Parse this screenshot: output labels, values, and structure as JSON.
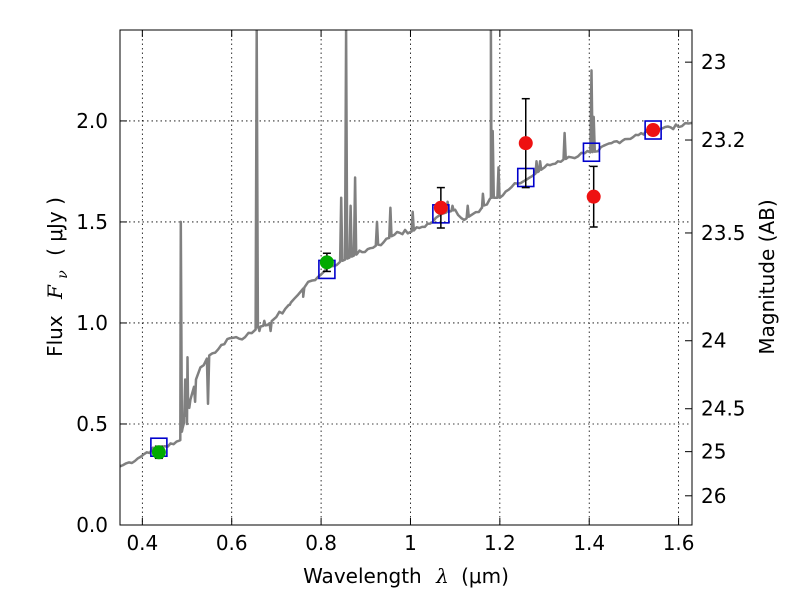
{
  "chart_data": {
    "type": "scatter",
    "title": "",
    "xlabel": "Wavelength",
    "xlabel_symbol": "λ",
    "xlabel_unit": "(μm)",
    "ylabel": "Flux",
    "ylabel_symbol": "F",
    "ylabel_subscript": "ν",
    "ylabel_unit": "( μJy )",
    "ylabel_right": "Magnitude (AB)",
    "xlim": [
      0.35,
      1.63
    ],
    "ylim": [
      0.0,
      2.45
    ],
    "grid": true,
    "x_ticks": [
      {
        "value": 0.4,
        "label": "0.4"
      },
      {
        "value": 0.6,
        "label": "0.6"
      },
      {
        "value": 0.8,
        "label": "0.8"
      },
      {
        "value": 1.0,
        "label": "1"
      },
      {
        "value": 1.2,
        "label": "1.2"
      },
      {
        "value": 1.4,
        "label": "1.4"
      },
      {
        "value": 1.6,
        "label": "1.6"
      }
    ],
    "y_ticks": [
      {
        "value": 0.0,
        "label": "0.0"
      },
      {
        "value": 0.5,
        "label": "0.5"
      },
      {
        "value": 1.0,
        "label": "1.0"
      },
      {
        "value": 1.5,
        "label": "1.5"
      },
      {
        "value": 2.0,
        "label": "2.0"
      }
    ],
    "right_ticks": [
      {
        "value": 23.0,
        "label": "23"
      },
      {
        "value": 23.2,
        "label": "23.2"
      },
      {
        "value": 23.5,
        "label": "23.5"
      },
      {
        "value": 24.0,
        "label": "24"
      },
      {
        "value": 24.5,
        "label": "24.5"
      },
      {
        "value": 25.0,
        "label": "25"
      },
      {
        "value": 26.0,
        "label": "26"
      }
    ],
    "colors": {
      "spectrum": "#808080",
      "model_box": "#0000cc",
      "green_points": "#00aa00",
      "red_points": "#ee1111",
      "errorbar": "#000000"
    },
    "spectrum_continuum": [
      [
        0.35,
        0.29
      ],
      [
        0.37,
        0.31
      ],
      [
        0.39,
        0.33
      ],
      [
        0.41,
        0.36
      ],
      [
        0.43,
        0.38
      ],
      [
        0.45,
        0.39
      ],
      [
        0.47,
        0.4
      ],
      [
        0.485,
        0.42
      ],
      [
        0.49,
        0.48
      ],
      [
        0.5,
        0.56
      ],
      [
        0.52,
        0.72
      ],
      [
        0.53,
        0.78
      ],
      [
        0.55,
        0.84
      ],
      [
        0.57,
        0.87
      ],
      [
        0.59,
        0.92
      ],
      [
        0.61,
        0.93
      ],
      [
        0.63,
        0.93
      ],
      [
        0.645,
        0.95
      ],
      [
        0.66,
        0.98
      ],
      [
        0.68,
        0.99
      ],
      [
        0.7,
        1.03
      ],
      [
        0.72,
        1.07
      ],
      [
        0.74,
        1.12
      ],
      [
        0.76,
        1.17
      ],
      [
        0.78,
        1.21
      ],
      [
        0.8,
        1.24
      ],
      [
        0.82,
        1.28
      ],
      [
        0.85,
        1.31
      ],
      [
        0.88,
        1.34
      ],
      [
        0.91,
        1.37
      ],
      [
        0.94,
        1.4
      ],
      [
        0.97,
        1.45
      ],
      [
        1.0,
        1.45
      ],
      [
        1.02,
        1.47
      ],
      [
        1.05,
        1.5
      ],
      [
        1.07,
        1.54
      ],
      [
        1.1,
        1.56
      ],
      [
        1.12,
        1.51
      ],
      [
        1.14,
        1.54
      ],
      [
        1.16,
        1.57
      ],
      [
        1.18,
        1.62
      ],
      [
        1.2,
        1.62
      ],
      [
        1.22,
        1.66
      ],
      [
        1.24,
        1.69
      ],
      [
        1.26,
        1.71
      ],
      [
        1.28,
        1.74
      ],
      [
        1.3,
        1.77
      ],
      [
        1.33,
        1.8
      ],
      [
        1.36,
        1.82
      ],
      [
        1.39,
        1.84
      ],
      [
        1.42,
        1.85
      ],
      [
        1.45,
        1.89
      ],
      [
        1.48,
        1.91
      ],
      [
        1.51,
        1.93
      ],
      [
        1.54,
        1.95
      ],
      [
        1.57,
        1.97
      ],
      [
        1.6,
        1.97
      ],
      [
        1.63,
        1.99
      ]
    ],
    "spectrum_features": [
      {
        "x": 0.486,
        "y": 1.5,
        "base": 0.42
      },
      {
        "x": 0.496,
        "y": 0.72,
        "base": 0.5
      },
      {
        "x": 0.501,
        "y": 0.83,
        "base": 0.56
      },
      {
        "x": 0.656,
        "y": 2.45,
        "base": 0.98
      },
      {
        "x": 0.673,
        "y": 1.01,
        "base": 0.99
      },
      {
        "x": 0.73,
        "y": 1.09,
        "base": 1.08
      },
      {
        "x": 0.845,
        "y": 1.62,
        "base": 1.3
      },
      {
        "x": 0.856,
        "y": 2.45,
        "base": 1.31
      },
      {
        "x": 0.866,
        "y": 1.58,
        "base": 1.31
      },
      {
        "x": 0.876,
        "y": 1.72,
        "base": 1.32
      },
      {
        "x": 0.925,
        "y": 1.5,
        "base": 1.37
      },
      {
        "x": 0.955,
        "y": 1.57,
        "base": 1.42
      },
      {
        "x": 1.005,
        "y": 1.55,
        "base": 1.45
      },
      {
        "x": 1.083,
        "y": 1.6,
        "base": 1.55
      },
      {
        "x": 1.094,
        "y": 1.58,
        "base": 1.55
      },
      {
        "x": 1.128,
        "y": 1.58,
        "base": 1.51
      },
      {
        "x": 1.162,
        "y": 1.64,
        "base": 1.57
      },
      {
        "x": 1.18,
        "y": 2.45,
        "base": 1.62
      },
      {
        "x": 1.184,
        "y": 1.95,
        "base": 1.62
      },
      {
        "x": 1.197,
        "y": 1.77,
        "base": 1.62
      },
      {
        "x": 1.282,
        "y": 1.8,
        "base": 1.74
      },
      {
        "x": 1.29,
        "y": 1.8,
        "base": 1.75
      },
      {
        "x": 1.345,
        "y": 1.94,
        "base": 1.81
      },
      {
        "x": 1.405,
        "y": 2.25,
        "base": 1.84
      },
      {
        "x": 1.41,
        "y": 2.02,
        "base": 1.85
      },
      {
        "x": 1.55,
        "y": 1.97,
        "base": 1.95
      }
    ],
    "spectrum_dips": [
      {
        "x": 0.5,
        "y": 0.5,
        "base": 0.56
      },
      {
        "x": 0.505,
        "y": 0.58,
        "base": 0.6
      },
      {
        "x": 0.518,
        "y": 0.61,
        "base": 0.7
      },
      {
        "x": 0.547,
        "y": 0.6,
        "base": 0.83
      },
      {
        "x": 0.662,
        "y": 0.96,
        "base": 0.98
      },
      {
        "x": 0.687,
        "y": 0.96,
        "base": 1.0
      },
      {
        "x": 0.76,
        "y": 1.13,
        "base": 1.17
      }
    ],
    "model_points": [
      {
        "x": 0.437,
        "y": 0.385
      },
      {
        "x": 0.813,
        "y": 1.265
      },
      {
        "x": 1.068,
        "y": 1.54
      },
      {
        "x": 1.258,
        "y": 1.72
      },
      {
        "x": 1.405,
        "y": 1.845
      },
      {
        "x": 1.543,
        "y": 1.955
      }
    ],
    "green_points": [
      {
        "x": 0.437,
        "y": 0.36,
        "err": 0.03
      },
      {
        "x": 0.813,
        "y": 1.3,
        "err": 0.045
      }
    ],
    "red_points": [
      {
        "x": 1.068,
        "y": 1.57,
        "err": 0.1
      },
      {
        "x": 1.258,
        "y": 1.89,
        "err": 0.22
      },
      {
        "x": 1.41,
        "y": 1.625,
        "err": 0.15
      },
      {
        "x": 1.543,
        "y": 1.955,
        "err": 0.0
      }
    ]
  }
}
